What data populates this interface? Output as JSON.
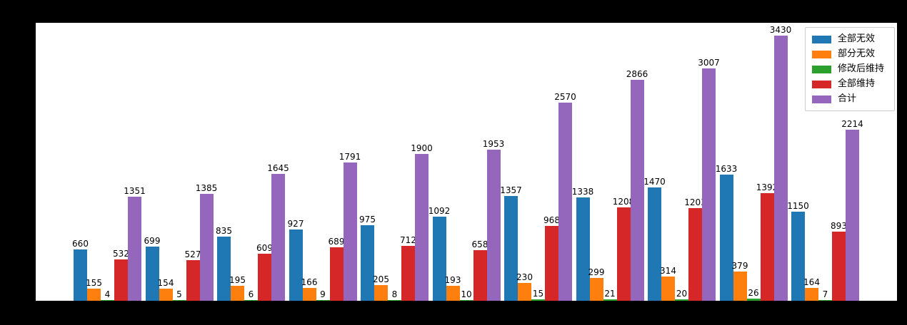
{
  "figure": {
    "background_color": "#000000",
    "plot_background_color": "#ffffff",
    "axis_line_color": "#000000",
    "value_label_color": "#000000"
  },
  "legend": {
    "position": "upper-right",
    "entries": [
      {
        "label": "全部无效",
        "color": "#1f77b4"
      },
      {
        "label": "部分无效",
        "color": "#ff7f0e"
      },
      {
        "label": "修改后维持",
        "color": "#2ca02c"
      },
      {
        "label": "全部维持",
        "color": "#d62728"
      },
      {
        "label": "合计",
        "color": "#9467bd"
      }
    ]
  },
  "chart_data": {
    "type": "bar",
    "group_count": 11,
    "x_tick_labels": [],
    "title": "",
    "xlabel": "",
    "ylabel": "",
    "ylim": [
      0,
      3600
    ],
    "grid": false,
    "legend_position": "upper right",
    "bar_value_labels": true,
    "series": [
      {
        "name": "全部无效",
        "color": "#1f77b4",
        "values": [
          660,
          699,
          835,
          927,
          975,
          1092,
          1357,
          1338,
          1470,
          1633,
          1150
        ]
      },
      {
        "name": "部分无效",
        "color": "#ff7f0e",
        "values": [
          155,
          154,
          195,
          166,
          205,
          193,
          230,
          299,
          314,
          379,
          164
        ]
      },
      {
        "name": "修改后维持",
        "color": "#2ca02c",
        "values": [
          4,
          5,
          6,
          9,
          8,
          10,
          15,
          21,
          20,
          26,
          7
        ]
      },
      {
        "name": "全部维持",
        "color": "#d62728",
        "values": [
          532,
          527,
          609,
          689,
          712,
          658,
          968,
          1208,
          1203,
          1392,
          893
        ]
      },
      {
        "name": "合计",
        "color": "#9467bd",
        "values": [
          1351,
          1385,
          1645,
          1791,
          1900,
          1953,
          2570,
          2866,
          3007,
          3430,
          2214
        ]
      }
    ]
  }
}
